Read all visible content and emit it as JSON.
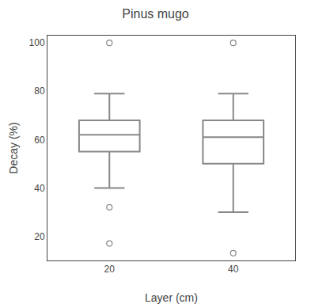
{
  "chart_data": {
    "type": "box",
    "title": "Pinus mugo",
    "xlabel": "Layer (cm)",
    "ylabel": "Decay (%)",
    "categories": [
      "20",
      "40"
    ],
    "q1": [
      55,
      50
    ],
    "median": [
      62,
      61
    ],
    "q3": [
      68,
      68
    ],
    "whisker_low": [
      40,
      30
    ],
    "whisker_high": [
      79,
      79
    ],
    "fliers": [
      [
        100,
        32,
        17
      ],
      [
        100,
        13
      ]
    ],
    "ylim": [
      10,
      103
    ],
    "yticks": [
      20,
      40,
      60,
      80,
      100
    ],
    "color": "#888888",
    "grid": false
  }
}
